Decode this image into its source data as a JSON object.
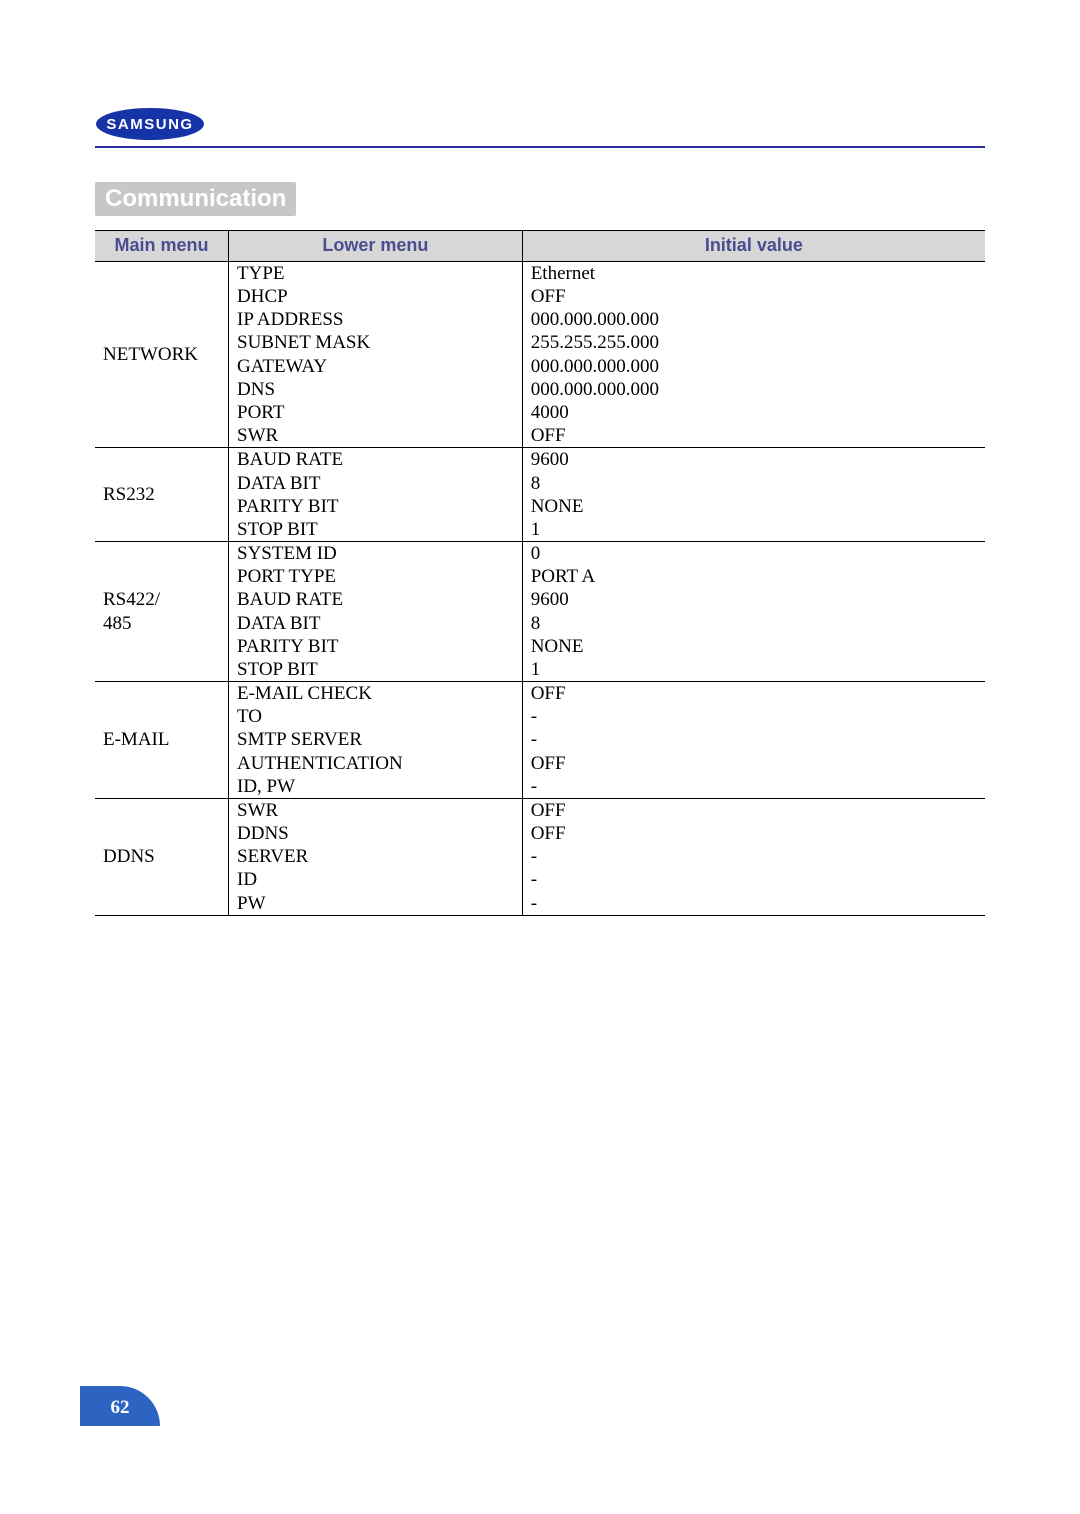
{
  "colors": {
    "header_rule": "#2d2fa0",
    "heading_bg": "#c5c7c9",
    "heading_text": "#ffffff",
    "table_header_bg": "#d7d7d7",
    "table_header_text": "#4a4d8f",
    "table_border": "#000000",
    "page_badge_bg": "#2d63c1",
    "page_badge_text": "#ffffff",
    "logo_oval": "#1634a8",
    "logo_text": "#ffffff"
  },
  "logo_text": "SAMSUNG",
  "heading": "Communication",
  "page_number": "62",
  "table": {
    "col_widths_pct": [
      15,
      33,
      52
    ],
    "headers": [
      "Main menu",
      "Lower menu",
      "Initial value"
    ],
    "groups": [
      {
        "main": "NETWORK",
        "rows": [
          [
            "TYPE",
            "Ethernet"
          ],
          [
            "DHCP",
            "OFF"
          ],
          [
            "IP ADDRESS",
            "000.000.000.000"
          ],
          [
            "SUBNET MASK",
            "255.255.255.000"
          ],
          [
            "GATEWAY",
            "000.000.000.000"
          ],
          [
            "DNS",
            "000.000.000.000"
          ],
          [
            "PORT",
            "4000"
          ],
          [
            "SWR",
            "OFF"
          ]
        ]
      },
      {
        "main": "RS232",
        "rows": [
          [
            "BAUD RATE",
            "9600"
          ],
          [
            "DATA BIT",
            "8"
          ],
          [
            "PARITY BIT",
            "NONE"
          ],
          [
            "STOP BIT",
            "1"
          ]
        ]
      },
      {
        "main": "RS422/\n485",
        "rows": [
          [
            "SYSTEM ID",
            "0"
          ],
          [
            "PORT TYPE",
            "PORT A"
          ],
          [
            "BAUD RATE",
            "9600"
          ],
          [
            "DATA BIT",
            "8"
          ],
          [
            "PARITY BIT",
            "NONE"
          ],
          [
            "STOP BIT",
            "1"
          ]
        ]
      },
      {
        "main": "E-MAIL",
        "rows": [
          [
            "E-MAIL CHECK",
            "OFF"
          ],
          [
            "TO",
            "-"
          ],
          [
            "SMTP SERVER",
            "-"
          ],
          [
            "AUTHENTICATION",
            "OFF"
          ],
          [
            "ID, PW",
            "-"
          ]
        ]
      },
      {
        "main": "DDNS",
        "rows": [
          [
            "SWR",
            "OFF"
          ],
          [
            "DDNS",
            "OFF"
          ],
          [
            "SERVER",
            "-"
          ],
          [
            "ID",
            "-"
          ],
          [
            "PW",
            "-"
          ]
        ]
      }
    ]
  }
}
